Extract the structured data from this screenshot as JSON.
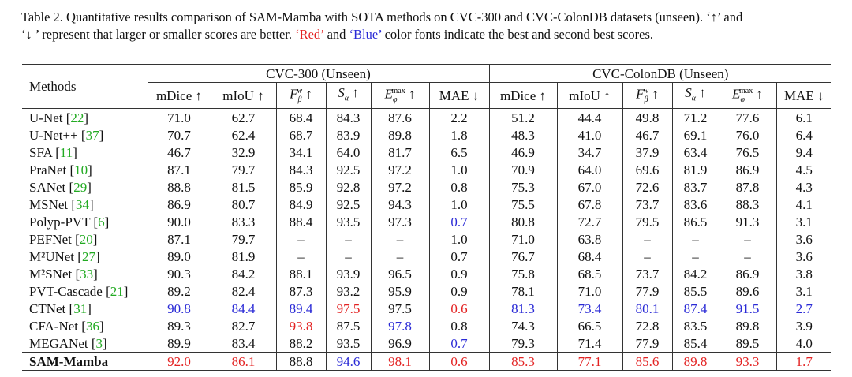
{
  "caption": {
    "line1": "Table 2. Quantitative results comparison of SAM-Mamba with SOTA methods on CVC-300 and CVC-ColonDB datasets (unseen). ‘↑’ and",
    "line2_pre": "‘↓ ’ represent that larger or smaller scores are better. ",
    "red_word": "‘Red’",
    "mid": " and ",
    "blue_word": "‘Blue’",
    "line2_post": " color fonts indicate the best and second best scores."
  },
  "table": {
    "methods_header": "Methods",
    "groups": [
      "CVC-300 (Unseen)",
      "CVC-ColonDB (Unseen)"
    ],
    "metrics": [
      "mDice ↑",
      "mIoU ↑",
      "F_β^w ↑",
      "S_α ↑",
      "E_φ^max ↑",
      "MAE ↓"
    ],
    "rows": [
      {
        "name": "U-Net",
        "cite": "22",
        "vals": [
          "71.0",
          "62.7",
          "68.4",
          "84.3",
          "87.6",
          "2.2",
          "51.2",
          "44.4",
          "49.8",
          "71.2",
          "77.6",
          "6.1"
        ],
        "colors": [
          "",
          "",
          "",
          "",
          "",
          "",
          "",
          "",
          "",
          "",
          "",
          ""
        ]
      },
      {
        "name": "U-Net++",
        "cite": "37",
        "vals": [
          "70.7",
          "62.4",
          "68.7",
          "83.9",
          "89.8",
          "1.8",
          "48.3",
          "41.0",
          "46.7",
          "69.1",
          "76.0",
          "6.4"
        ],
        "colors": [
          "",
          "",
          "",
          "",
          "",
          "",
          "",
          "",
          "",
          "",
          "",
          ""
        ]
      },
      {
        "name": "SFA",
        "cite": "11",
        "vals": [
          "46.7",
          "32.9",
          "34.1",
          "64.0",
          "81.7",
          "6.5",
          "46.9",
          "34.7",
          "37.9",
          "63.4",
          "76.5",
          "9.4"
        ],
        "colors": [
          "",
          "",
          "",
          "",
          "",
          "",
          "",
          "",
          "",
          "",
          "",
          ""
        ]
      },
      {
        "name": "PraNet",
        "cite": "10",
        "vals": [
          "87.1",
          "79.7",
          "84.3",
          "92.5",
          "97.2",
          "1.0",
          "70.9",
          "64.0",
          "69.6",
          "81.9",
          "86.9",
          "4.5"
        ],
        "colors": [
          "",
          "",
          "",
          "",
          "",
          "",
          "",
          "",
          "",
          "",
          "",
          ""
        ]
      },
      {
        "name": "SANet",
        "cite": "29",
        "vals": [
          "88.8",
          "81.5",
          "85.9",
          "92.8",
          "97.2",
          "0.8",
          "75.3",
          "67.0",
          "72.6",
          "83.7",
          "87.8",
          "4.3"
        ],
        "colors": [
          "",
          "",
          "",
          "",
          "",
          "",
          "",
          "",
          "",
          "",
          "",
          ""
        ]
      },
      {
        "name": "MSNet",
        "cite": "34",
        "vals": [
          "86.9",
          "80.7",
          "84.9",
          "92.5",
          "94.3",
          "1.0",
          "75.5",
          "67.8",
          "73.7",
          "83.6",
          "88.3",
          "4.1"
        ],
        "colors": [
          "",
          "",
          "",
          "",
          "",
          "",
          "",
          "",
          "",
          "",
          "",
          ""
        ]
      },
      {
        "name": "Polyp-PVT",
        "cite": "6",
        "vals": [
          "90.0",
          "83.3",
          "88.4",
          "93.5",
          "97.3",
          "0.7",
          "80.8",
          "72.7",
          "79.5",
          "86.5",
          "91.3",
          "3.1"
        ],
        "colors": [
          "",
          "",
          "",
          "",
          "",
          "b",
          "",
          "",
          "",
          "",
          "",
          ""
        ]
      },
      {
        "name": "PEFNet",
        "cite": "20",
        "vals": [
          "87.1",
          "79.7",
          "–",
          "–",
          "–",
          "1.0",
          "71.0",
          "63.8",
          "–",
          "–",
          "–",
          "3.6"
        ],
        "colors": [
          "",
          "",
          "",
          "",
          "",
          "",
          "",
          "",
          "",
          "",
          "",
          ""
        ]
      },
      {
        "name": "M²UNet",
        "cite": "27",
        "vals": [
          "89.0",
          "81.9",
          "–",
          "–",
          "–",
          "0.7",
          "76.7",
          "68.4",
          "–",
          "–",
          "–",
          "3.6"
        ],
        "colors": [
          "",
          "",
          "",
          "",
          "",
          "",
          "",
          "",
          "",
          "",
          "",
          ""
        ]
      },
      {
        "name": "M²SNet",
        "cite": "33",
        "vals": [
          "90.3",
          "84.2",
          "88.1",
          "93.9",
          "96.5",
          "0.9",
          "75.8",
          "68.5",
          "73.7",
          "84.2",
          "86.9",
          "3.8"
        ],
        "colors": [
          "",
          "",
          "",
          "",
          "",
          "",
          "",
          "",
          "",
          "",
          "",
          ""
        ]
      },
      {
        "name": "PVT-Cascade",
        "cite": "21",
        "vals": [
          "89.2",
          "82.4",
          "87.3",
          "93.2",
          "95.9",
          "0.9",
          "78.1",
          "71.0",
          "77.9",
          "85.5",
          "89.6",
          "3.1"
        ],
        "colors": [
          "",
          "",
          "",
          "",
          "",
          "",
          "",
          "",
          "",
          "",
          "",
          ""
        ]
      },
      {
        "name": "CTNet",
        "cite": "31",
        "vals": [
          "90.8",
          "84.4",
          "89.4",
          "97.5",
          "97.5",
          "0.6",
          "81.3",
          "73.4",
          "80.1",
          "87.4",
          "91.5",
          "2.7"
        ],
        "colors": [
          "b",
          "b",
          "b",
          "r",
          "",
          "r",
          "b",
          "b",
          "b",
          "b",
          "b",
          "b"
        ]
      },
      {
        "name": "CFA-Net",
        "cite": "36",
        "vals": [
          "89.3",
          "82.7",
          "93.8",
          "87.5",
          "97.8",
          "0.8",
          "74.3",
          "66.5",
          "72.8",
          "83.5",
          "89.8",
          "3.9"
        ],
        "colors": [
          "",
          "",
          "r",
          "",
          "b",
          "",
          "",
          "",
          "",
          "",
          "",
          ""
        ]
      },
      {
        "name": "MEGANet",
        "cite": "3",
        "vals": [
          "89.9",
          "83.4",
          "88.2",
          "93.5",
          "96.9",
          "0.7",
          "79.3",
          "71.4",
          "77.9",
          "85.4",
          "89.5",
          "4.0"
        ],
        "colors": [
          "",
          "",
          "",
          "",
          "",
          "b",
          "",
          "",
          "",
          "",
          "",
          ""
        ]
      },
      {
        "name": "SAM-Mamba",
        "cite": "",
        "bold": true,
        "vals": [
          "92.0",
          "86.1",
          "88.8",
          "94.6",
          "98.1",
          "0.6",
          "85.3",
          "77.1",
          "85.6",
          "89.8",
          "93.3",
          "1.7"
        ],
        "colors": [
          "r",
          "r",
          "",
          "b",
          "r",
          "r",
          "r",
          "r",
          "r",
          "r",
          "r",
          "r"
        ]
      }
    ]
  },
  "colors": {
    "red": "#e32222",
    "blue": "#2a2ad6",
    "cite_green": "#22aa22"
  }
}
